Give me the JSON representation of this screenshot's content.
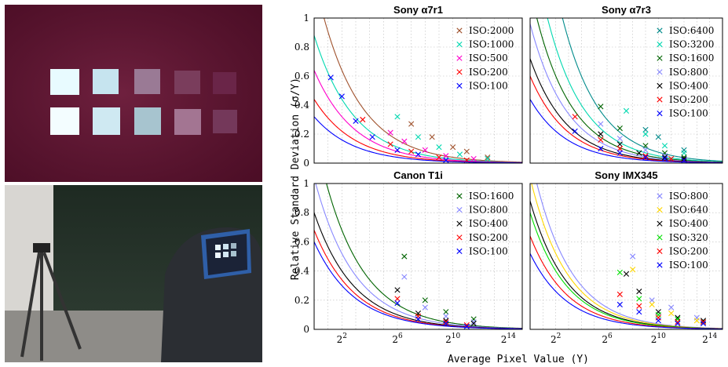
{
  "figure": {
    "ylabel": "Relative Standard Deviation (σ/Y)",
    "xlabel": "Average Pixel Value (Y)"
  },
  "chart_data": [
    {
      "type": "line",
      "title": "Sony α7r1",
      "ylim": [
        0,
        1
      ],
      "xlim_log2": [
        0,
        15
      ],
      "x_ticks": [
        "2^2",
        "2^6",
        "2^10",
        "2^14"
      ],
      "y_ticks": [
        "0",
        "0.2",
        "0.4",
        "0.6",
        "0.8",
        "1"
      ],
      "legend_position": "top-right",
      "grid": true,
      "series": [
        {
          "name": "ISO:2000",
          "color": "#a0522d",
          "k": 0.16,
          "x_log2": [
            7.0,
            8.5,
            10.0,
            11.0,
            12.5
          ],
          "y": [
            0.27,
            0.18,
            0.11,
            0.08,
            0.04
          ]
        },
        {
          "name": "ISO:1000",
          "color": "#00d8b0",
          "k": 0.11,
          "x_log2": [
            6.0,
            7.5,
            9.0,
            10.5,
            12.5
          ],
          "y": [
            0.32,
            0.18,
            0.11,
            0.06,
            0.03
          ]
        },
        {
          "name": "ISO:500",
          "color": "#ff00cc",
          "k": 0.08,
          "x_log2": [
            5.5,
            6.5,
            8.0,
            9.5,
            11.5
          ],
          "y": [
            0.21,
            0.15,
            0.09,
            0.05,
            0.03
          ]
        },
        {
          "name": "ISO:200",
          "color": "#ff0000",
          "k": 0.055,
          "x_log2": [
            3.5,
            5.5,
            7.0,
            9.0,
            11.0
          ],
          "y": [
            0.3,
            0.13,
            0.08,
            0.04,
            0.02
          ]
        },
        {
          "name": "ISO:100",
          "color": "#0000ff",
          "k": 0.04,
          "x_log2": [
            1.2,
            2.0,
            3.0,
            4.2,
            6.0,
            7.5,
            9.5
          ],
          "y": [
            0.59,
            0.46,
            0.29,
            0.18,
            0.09,
            0.06,
            0.02
          ]
        }
      ]
    },
    {
      "type": "line",
      "title": "Sony α7r3",
      "ylim": [
        0,
        1
      ],
      "xlim_log2": [
        0,
        15
      ],
      "x_ticks": [
        "2^2",
        "2^6",
        "2^10",
        "2^14"
      ],
      "y_ticks": [
        "0",
        "0.2",
        "0.4",
        "0.6",
        "0.8",
        "1"
      ],
      "legend_position": "top-right",
      "grid": true,
      "series": [
        {
          "name": "ISO:6400",
          "color": "#008b8b",
          "k": 0.3,
          "x_log2": [
            9.0,
            10.0,
            12.0
          ],
          "y": [
            0.23,
            0.18,
            0.09
          ]
        },
        {
          "name": "ISO:3200",
          "color": "#00d8b0",
          "k": 0.2,
          "x_log2": [
            7.5,
            9.0,
            10.5,
            12.0
          ],
          "y": [
            0.36,
            0.2,
            0.12,
            0.07
          ]
        },
        {
          "name": "ISO:1600",
          "color": "#006400",
          "k": 0.15,
          "x_log2": [
            5.5,
            7.0,
            9.0,
            10.5,
            12.0
          ],
          "y": [
            0.39,
            0.24,
            0.12,
            0.07,
            0.04
          ]
        },
        {
          "name": "ISO:800",
          "color": "#8888ff",
          "k": 0.12,
          "x_log2": [
            5.5,
            7.0,
            9.0,
            10.5
          ],
          "y": [
            0.27,
            0.17,
            0.09,
            0.05
          ]
        },
        {
          "name": "ISO:400",
          "color": "#000000",
          "k": 0.09,
          "x_log2": [
            5.5,
            7.0,
            8.5,
            10.5,
            12.0
          ],
          "y": [
            0.2,
            0.13,
            0.07,
            0.04,
            0.03
          ]
        },
        {
          "name": "ISO:200",
          "color": "#ff0000",
          "k": 0.075,
          "x_log2": [
            3.5,
            5.5,
            7.0,
            9.0,
            11.0,
            12.0
          ],
          "y": [
            0.32,
            0.16,
            0.1,
            0.05,
            0.03,
            0.02
          ]
        },
        {
          "name": "ISO:100",
          "color": "#0000ff",
          "k": 0.055,
          "x_log2": [
            3.5,
            5.5,
            7.0,
            9.0,
            10.5,
            12.0
          ],
          "y": [
            0.22,
            0.1,
            0.07,
            0.04,
            0.03,
            0.02
          ]
        }
      ]
    },
    {
      "type": "line",
      "title": "Canon T1i",
      "ylim": [
        0,
        1
      ],
      "xlim_log2": [
        0,
        15
      ],
      "x_ticks": [
        "2^2",
        "2^6",
        "2^10",
        "2^14"
      ],
      "y_ticks": [
        "0",
        "0.2",
        "0.4",
        "0.6",
        "0.8",
        "1"
      ],
      "legend_position": "top-right",
      "grid": true,
      "series": [
        {
          "name": "ISO:1600",
          "color": "#006400",
          "k": 0.17,
          "x_log2": [
            6.5,
            8.0,
            9.5,
            11.5
          ],
          "y": [
            0.5,
            0.2,
            0.12,
            0.07
          ]
        },
        {
          "name": "ISO:800",
          "color": "#8888ff",
          "k": 0.13,
          "x_log2": [
            6.5,
            8.0,
            9.5,
            11.5
          ],
          "y": [
            0.36,
            0.15,
            0.09,
            0.05
          ]
        },
        {
          "name": "ISO:400",
          "color": "#000000",
          "k": 0.1,
          "x_log2": [
            6.0,
            7.5,
            9.5,
            11.5
          ],
          "y": [
            0.27,
            0.11,
            0.06,
            0.04
          ]
        },
        {
          "name": "ISO:200",
          "color": "#ff0000",
          "k": 0.085,
          "x_log2": [
            6.0,
            7.5,
            9.5,
            11.0
          ],
          "y": [
            0.21,
            0.09,
            0.05,
            0.03
          ]
        },
        {
          "name": "ISO:100",
          "color": "#0000ff",
          "k": 0.075,
          "x_log2": [
            6.0,
            7.5,
            9.5,
            11.0
          ],
          "y": [
            0.18,
            0.07,
            0.04,
            0.02
          ]
        }
      ]
    },
    {
      "type": "line",
      "title": "Sony IMX345",
      "ylim": [
        0,
        1
      ],
      "xlim_log2": [
        0,
        15
      ],
      "x_ticks": [
        "2^2",
        "2^6",
        "2^10",
        "2^14"
      ],
      "y_ticks": [
        "0",
        "0.2",
        "0.4",
        "0.6",
        "0.8",
        "1"
      ],
      "legend_position": "top-right",
      "grid": true,
      "series": [
        {
          "name": "ISO:800",
          "color": "#8888ff",
          "k": 0.15,
          "x_log2": [
            8.0,
            9.5,
            11.0,
            13.0
          ],
          "y": [
            0.5,
            0.2,
            0.15,
            0.08
          ]
        },
        {
          "name": "ISO:640",
          "color": "#ffd700",
          "k": 0.13,
          "x_log2": [
            8.0,
            9.5,
            11.0,
            13.0
          ],
          "y": [
            0.41,
            0.17,
            0.11,
            0.06
          ]
        },
        {
          "name": "ISO:400",
          "color": "#000000",
          "k": 0.11,
          "x_log2": [
            7.5,
            8.5,
            10.0,
            11.5,
            13.5
          ],
          "y": [
            0.38,
            0.26,
            0.12,
            0.08,
            0.06
          ]
        },
        {
          "name": "ISO:320",
          "color": "#00e000",
          "k": 0.1,
          "x_log2": [
            7.0,
            8.5,
            10.0,
            11.5,
            13.5
          ],
          "y": [
            0.39,
            0.21,
            0.1,
            0.07,
            0.05
          ]
        },
        {
          "name": "ISO:200",
          "color": "#ff0000",
          "k": 0.08,
          "x_log2": [
            7.0,
            8.5,
            10.0,
            11.5,
            13.5
          ],
          "y": [
            0.24,
            0.16,
            0.08,
            0.05,
            0.05
          ]
        },
        {
          "name": "ISO:100",
          "color": "#0000ff",
          "k": 0.065,
          "x_log2": [
            7.0,
            8.5,
            10.0,
            11.5,
            13.5
          ],
          "y": [
            0.17,
            0.12,
            0.06,
            0.04,
            0.04
          ]
        }
      ]
    }
  ]
}
